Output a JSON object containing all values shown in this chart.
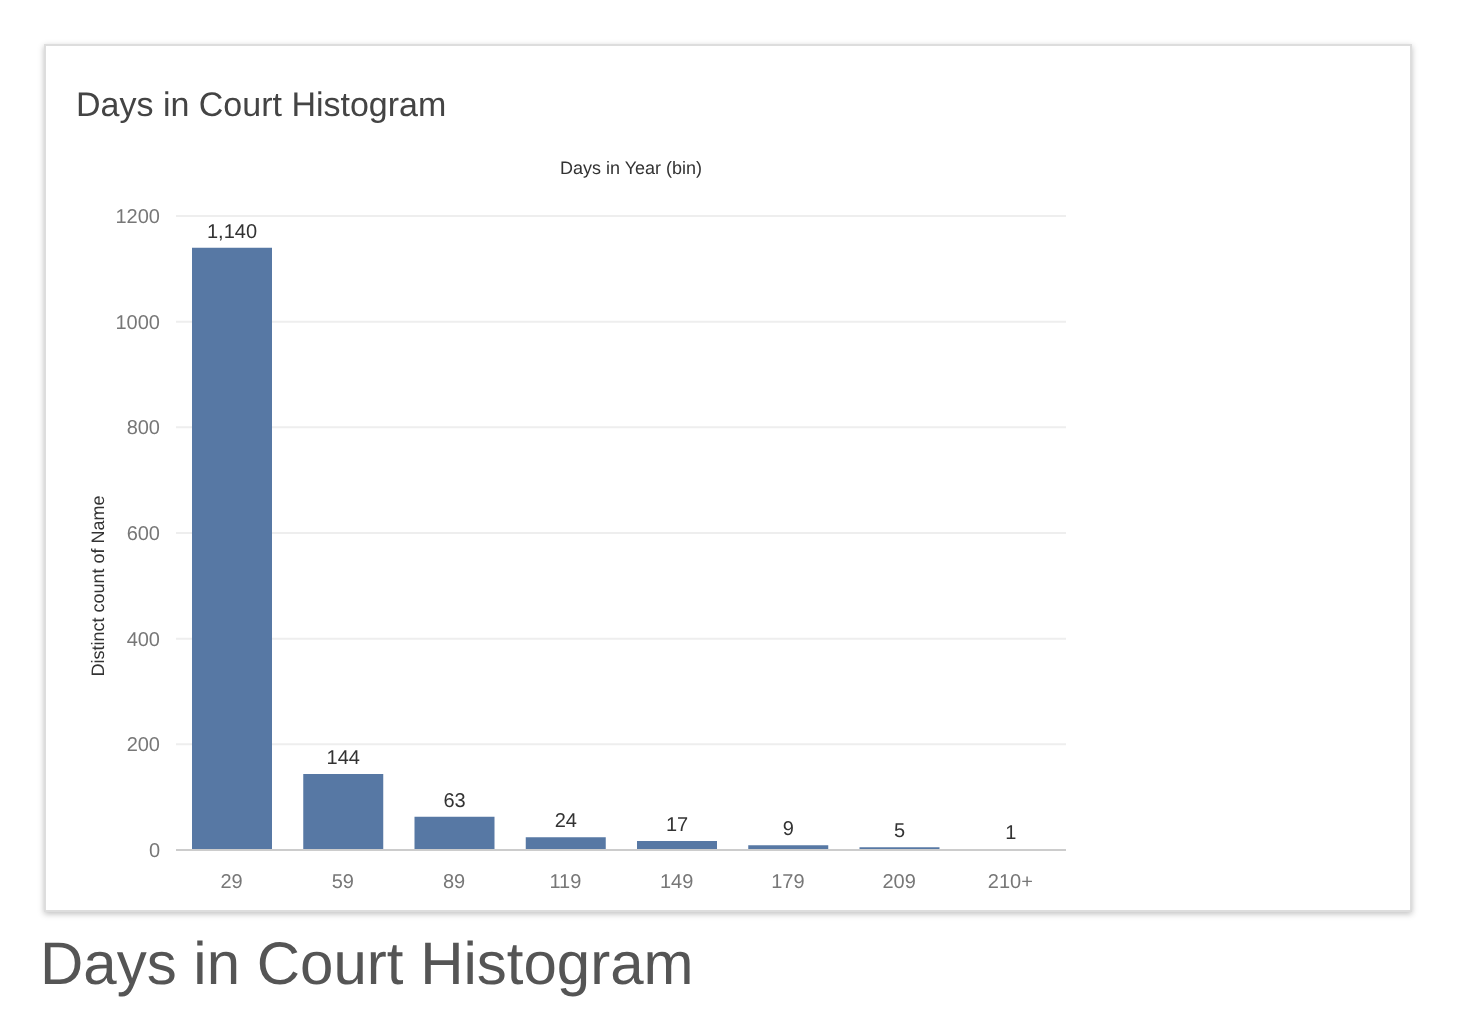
{
  "chart_data": {
    "type": "bar",
    "title": "Days in Court Histogram",
    "xlabel": "Days in Year (bin)",
    "ylabel": "Distinct count of Name",
    "categories": [
      "29",
      "59",
      "89",
      "119",
      "149",
      "179",
      "209",
      "210+"
    ],
    "values": [
      1140,
      144,
      63,
      24,
      17,
      9,
      5,
      1
    ],
    "value_labels": [
      "1,140",
      "144",
      "63",
      "24",
      "17",
      "9",
      "5",
      "1"
    ],
    "color": "#5778a4",
    "ylim": [
      0,
      1200
    ],
    "yticks": [
      0,
      200,
      400,
      600,
      800,
      1000,
      1200
    ],
    "grid": "y",
    "annotations": [
      "Days in Court Histogram"
    ]
  }
}
